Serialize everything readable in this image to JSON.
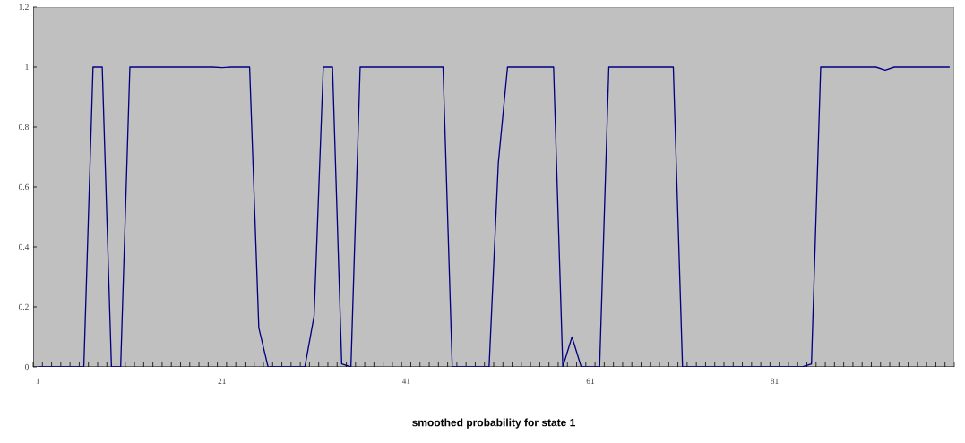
{
  "chart_data": {
    "type": "line",
    "xlabel": "smoothed probability for state 1",
    "categories": [
      "1",
      null,
      null,
      null,
      null,
      null,
      null,
      null,
      null,
      null,
      null,
      null,
      null,
      null,
      null,
      null,
      null,
      null,
      null,
      null,
      "21",
      null,
      null,
      null,
      null,
      null,
      null,
      null,
      null,
      null,
      null,
      null,
      null,
      null,
      null,
      null,
      null,
      null,
      null,
      null,
      "41",
      null,
      null,
      null,
      null,
      null,
      null,
      null,
      null,
      null,
      null,
      null,
      null,
      null,
      null,
      null,
      null,
      null,
      null,
      null,
      "61",
      null,
      null,
      null,
      null,
      null,
      null,
      null,
      null,
      null,
      null,
      null,
      null,
      null,
      null,
      null,
      null,
      null,
      null,
      null,
      "81",
      null,
      null,
      null,
      null,
      null,
      null,
      null,
      null,
      null,
      null,
      null,
      null,
      null,
      null,
      null,
      null,
      null,
      null,
      null
    ],
    "series": [
      {
        "color": "#000080",
        "values": [
          0,
          0,
          0,
          0,
          0,
          0,
          1,
          1,
          0,
          0,
          1,
          1,
          1,
          1,
          1,
          1,
          1,
          1,
          1,
          1,
          0.998,
          1,
          1,
          1,
          0.13,
          0,
          0,
          0,
          0,
          0,
          0.17,
          1,
          1,
          0.01,
          0,
          1,
          1,
          1,
          1,
          1,
          1,
          1,
          1,
          1,
          1,
          0,
          0,
          0,
          0,
          0,
          0.68,
          1,
          1,
          1,
          1,
          1,
          1,
          0,
          0.1,
          0,
          0,
          0,
          1,
          1,
          1,
          1,
          1,
          1,
          1,
          1,
          0,
          0,
          0,
          0,
          0,
          0,
          0,
          0,
          0,
          0,
          0,
          0,
          0,
          0,
          0.01,
          1,
          1,
          1,
          1,
          1,
          1,
          1,
          0.99,
          1,
          1,
          1,
          1,
          1,
          1,
          1
        ]
      }
    ],
    "ylim": [
      0,
      1.2
    ],
    "yticks": [
      0,
      0.2,
      0.4,
      0.6,
      0.8,
      1,
      1.2
    ],
    "grid": false,
    "marker": "none",
    "line_style": "solid"
  }
}
